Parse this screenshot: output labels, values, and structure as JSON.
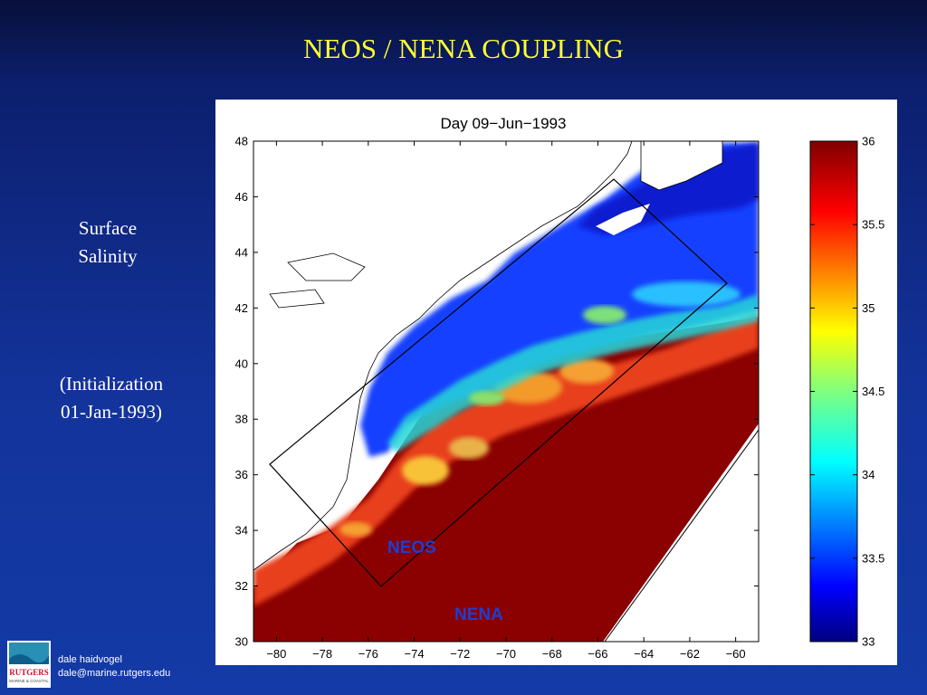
{
  "slide": {
    "title": "NEOS / NENA COUPLING",
    "side_label_line1": "Surface",
    "side_label_line2": "Salinity",
    "init_line1": "(Initialization",
    "init_line2": "01-Jan-1993)"
  },
  "footer": {
    "author": "dale haidvogel",
    "email": "dale@marine.rutgers.edu",
    "logo_text": "RUTGERS",
    "logo_subtext": "MARINE & COASTAL"
  },
  "colors": {
    "background": "#133399",
    "title": "#ffff33",
    "region_label": "#1a3fd6",
    "salinity_high": "#800000",
    "salinity_low": "#00008f"
  },
  "chart_data": {
    "type": "heatmap",
    "title": "Day 09−Jun−1993",
    "x_ticks": [
      "−80",
      "−78",
      "−76",
      "−74",
      "−72",
      "−70",
      "−68",
      "−66",
      "−64",
      "−62",
      "−60"
    ],
    "y_ticks": [
      "48",
      "46",
      "44",
      "42",
      "40",
      "38",
      "36",
      "34",
      "32",
      "30"
    ],
    "xlim": [
      -81,
      -59
    ],
    "ylim": [
      30,
      48
    ],
    "colorbar": {
      "range": [
        33,
        36
      ],
      "ticks": [
        "36",
        "35.5",
        "35",
        "34.5",
        "34",
        "33.5",
        "33"
      ],
      "colormap": "jet"
    },
    "annotations": [
      "NEOS",
      "NENA"
    ]
  }
}
